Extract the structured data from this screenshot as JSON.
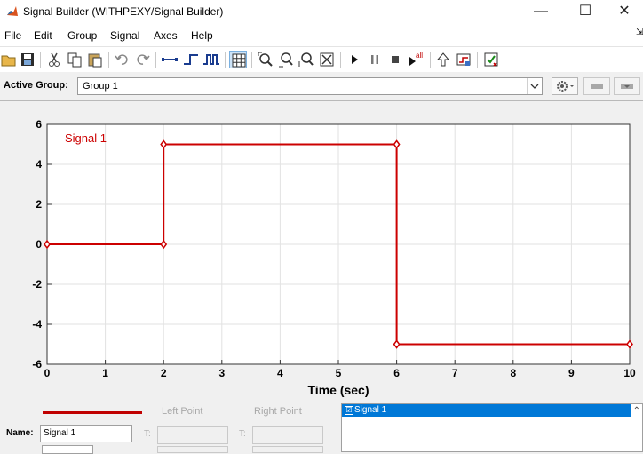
{
  "window": {
    "title": "Signal Builder (WITHPEXY/Signal Builder)",
    "minimize": "—",
    "maximize": "☐",
    "close": "✕"
  },
  "menu": {
    "items": [
      "File",
      "Edit",
      "Group",
      "Signal",
      "Axes",
      "Help"
    ],
    "pin": "⇲"
  },
  "toolbar": {
    "icons": [
      "open-folder-icon",
      "save-icon",
      "cut-icon",
      "copy-icon",
      "paste-icon",
      "undo-icon",
      "redo-icon",
      "constant-signal-icon",
      "step-signal-icon",
      "pulse-signal-icon",
      "grid-icon",
      "zoom-xy-icon",
      "zoom-x-icon",
      "zoom-y-icon",
      "fit-view-icon",
      "run-icon",
      "pause-icon",
      "stop-icon",
      "run-all-icon",
      "up-arrow-icon",
      "signal-block-icon",
      "verification-icon"
    ],
    "run_all_label": "all"
  },
  "group_bar": {
    "label": "Active Group:",
    "value": "Group 1"
  },
  "chart_data": {
    "type": "line",
    "series": [
      {
        "name": "Signal 1",
        "color": "#cc0000",
        "x": [
          0,
          2,
          2,
          6,
          6,
          10
        ],
        "y": [
          0,
          0,
          5,
          5,
          -5,
          -5
        ]
      }
    ],
    "xlabel": "Time (sec)",
    "ylabel": "",
    "xlim": [
      0,
      10
    ],
    "ylim": [
      -6,
      6
    ],
    "xticks": [
      0,
      1,
      2,
      3,
      4,
      5,
      6,
      7,
      8,
      9,
      10
    ],
    "yticks": [
      -6,
      -4,
      -2,
      0,
      2,
      4,
      6
    ],
    "grid": true,
    "legend": "top-left"
  },
  "bottom": {
    "left_point": "Left Point",
    "right_point": "Right Point",
    "name_label": "Name:",
    "name_value": "Signal 1",
    "t_label": "T:",
    "signal_list": [
      "Signal 1"
    ],
    "check": "☑",
    "scroll_up": "⌃"
  }
}
